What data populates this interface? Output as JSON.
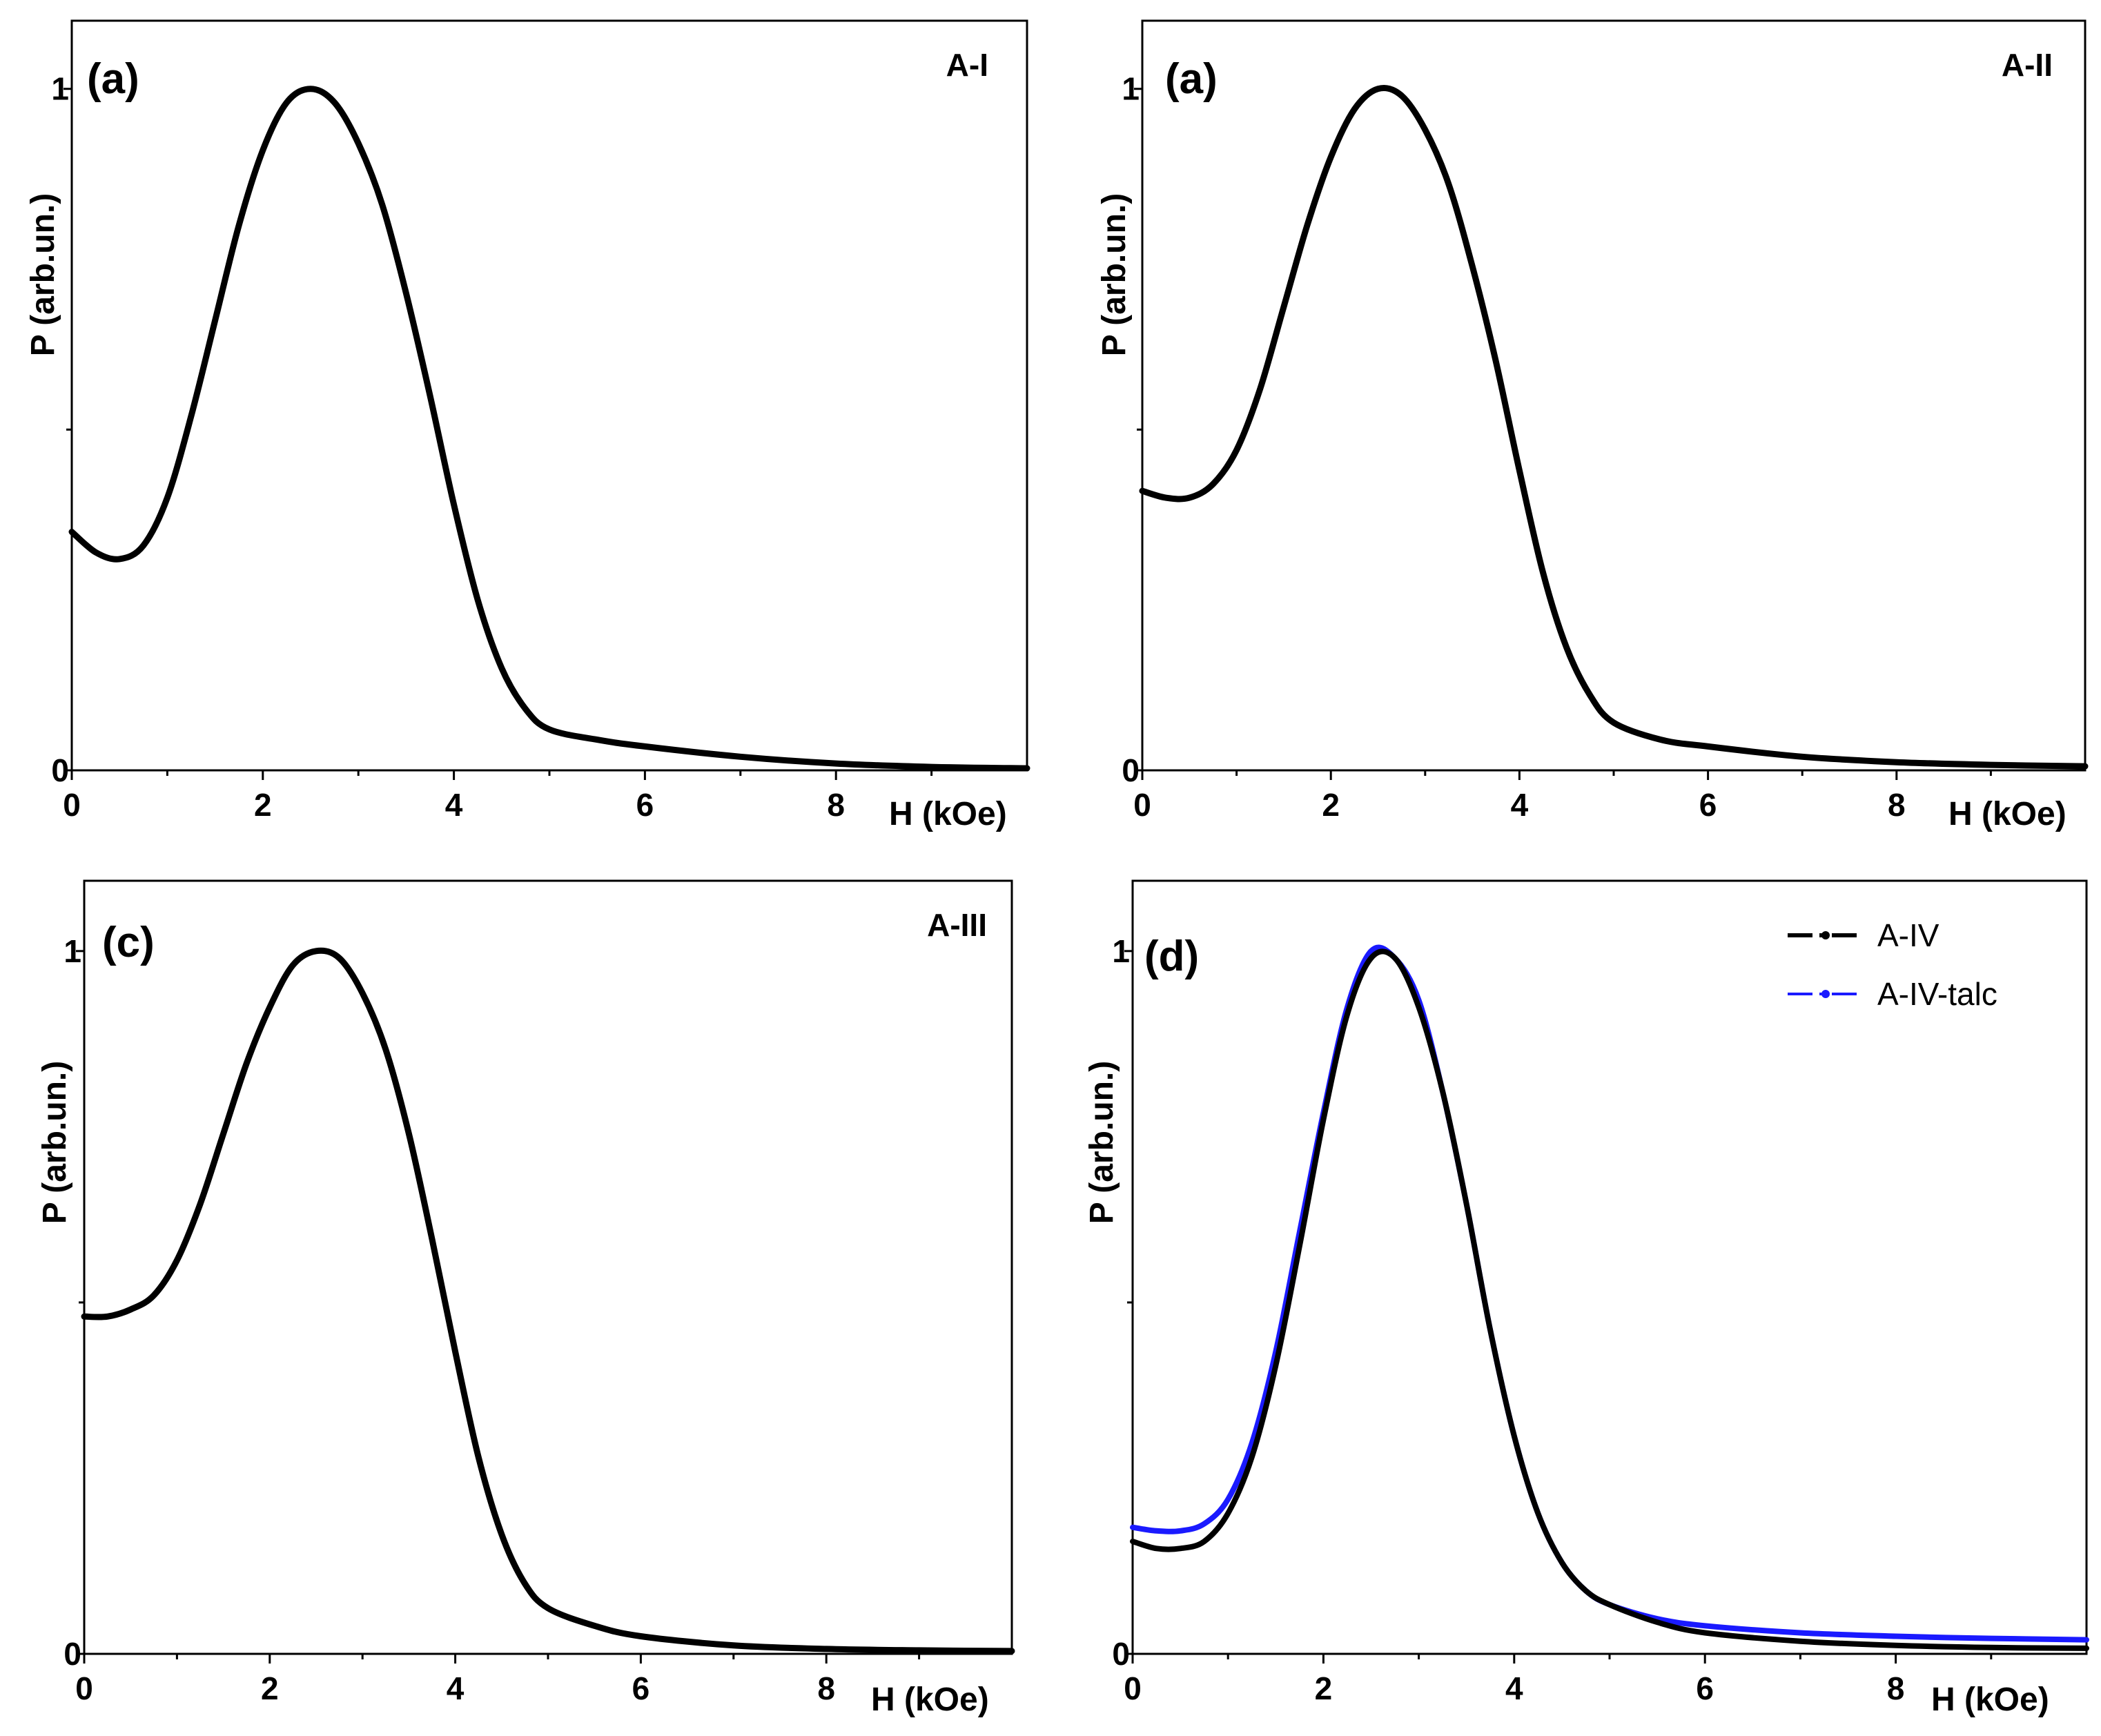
{
  "chart_data": [
    {
      "type": "line",
      "panel_label": "(a)",
      "sample_label": "A-I",
      "xlabel": "H (kOe)",
      "ylabel": "P (arb.un.)",
      "xlim": [
        0,
        10
      ],
      "ylim": [
        0,
        1.1
      ],
      "xticks": [
        0,
        2,
        4,
        6,
        8
      ],
      "yticks": [
        0,
        1
      ],
      "legend": false,
      "series": [
        {
          "name": "A-I",
          "color": "#000000",
          "x": [
            0,
            0.25,
            0.5,
            0.75,
            1.0,
            1.25,
            1.5,
            1.75,
            2.0,
            2.25,
            2.5,
            2.75,
            3.0,
            3.25,
            3.5,
            3.75,
            4.0,
            4.25,
            4.5,
            4.75,
            5.0,
            5.5,
            6.0,
            7.0,
            8.0,
            9.0,
            10.0
          ],
          "y": [
            0.35,
            0.32,
            0.31,
            0.33,
            0.4,
            0.52,
            0.66,
            0.8,
            0.91,
            0.98,
            1.0,
            0.98,
            0.92,
            0.83,
            0.7,
            0.55,
            0.39,
            0.25,
            0.15,
            0.09,
            0.06,
            0.045,
            0.035,
            0.02,
            0.01,
            0.005,
            0.003
          ]
        }
      ]
    },
    {
      "type": "line",
      "panel_label": "(a)",
      "sample_label": "A-II",
      "xlabel": "H (kOe)",
      "ylabel": "P (arb.un.)",
      "xlim": [
        0,
        10
      ],
      "ylim": [
        0,
        1.1
      ],
      "xticks": [
        0,
        2,
        4,
        6,
        8
      ],
      "yticks": [
        0,
        1
      ],
      "legend": false,
      "series": [
        {
          "name": "A-II",
          "color": "#000000",
          "x": [
            0,
            0.25,
            0.5,
            0.75,
            1.0,
            1.25,
            1.5,
            1.75,
            2.0,
            2.25,
            2.5,
            2.75,
            3.0,
            3.25,
            3.5,
            3.75,
            4.0,
            4.25,
            4.5,
            4.75,
            5.0,
            5.5,
            6.0,
            7.0,
            8.0,
            9.0,
            10.0
          ],
          "y": [
            0.41,
            0.4,
            0.4,
            0.42,
            0.47,
            0.56,
            0.68,
            0.8,
            0.9,
            0.97,
            1.0,
            0.99,
            0.94,
            0.86,
            0.74,
            0.6,
            0.44,
            0.29,
            0.18,
            0.11,
            0.07,
            0.045,
            0.035,
            0.02,
            0.012,
            0.008,
            0.006
          ]
        }
      ]
    },
    {
      "type": "line",
      "panel_label": "(c)",
      "sample_label": "A-III",
      "xlabel": "H (kOe)",
      "ylabel": "P (arb.un.)",
      "xlim": [
        0,
        10
      ],
      "ylim": [
        0,
        1.1
      ],
      "xticks": [
        0,
        2,
        4,
        6,
        8
      ],
      "yticks": [
        0,
        1
      ],
      "legend": false,
      "series": [
        {
          "name": "A-III",
          "color": "#000000",
          "x": [
            0,
            0.25,
            0.5,
            0.75,
            1.0,
            1.25,
            1.5,
            1.75,
            2.0,
            2.25,
            2.5,
            2.75,
            3.0,
            3.25,
            3.5,
            3.75,
            4.0,
            4.25,
            4.5,
            4.75,
            5.0,
            5.5,
            6.0,
            7.0,
            8.0,
            9.0,
            10.0
          ],
          "y": [
            0.48,
            0.48,
            0.49,
            0.51,
            0.56,
            0.64,
            0.74,
            0.84,
            0.92,
            0.98,
            1.0,
            0.99,
            0.94,
            0.86,
            0.74,
            0.59,
            0.43,
            0.28,
            0.17,
            0.1,
            0.065,
            0.04,
            0.025,
            0.012,
            0.007,
            0.005,
            0.004
          ]
        }
      ]
    },
    {
      "type": "line",
      "panel_label": "(d)",
      "sample_label": "",
      "xlabel": "H (kOe)",
      "ylabel": "P (arb.un.)",
      "xlim": [
        0,
        10
      ],
      "ylim": [
        0,
        1.1
      ],
      "xticks": [
        0,
        2,
        4,
        6,
        8
      ],
      "yticks": [
        0,
        1
      ],
      "legend": true,
      "legend_position": "top-right",
      "series": [
        {
          "name": "A-IV",
          "color": "#000000",
          "x": [
            0,
            0.25,
            0.5,
            0.75,
            1.0,
            1.25,
            1.5,
            1.75,
            2.0,
            2.25,
            2.5,
            2.75,
            3.0,
            3.25,
            3.5,
            3.75,
            4.0,
            4.25,
            4.5,
            4.75,
            5.0,
            5.5,
            6.0,
            7.0,
            8.0,
            9.0,
            10.0
          ],
          "y": [
            0.16,
            0.15,
            0.15,
            0.16,
            0.2,
            0.28,
            0.41,
            0.58,
            0.76,
            0.91,
            0.99,
            0.99,
            0.92,
            0.8,
            0.64,
            0.46,
            0.31,
            0.2,
            0.13,
            0.09,
            0.07,
            0.045,
            0.03,
            0.018,
            0.012,
            0.009,
            0.008
          ]
        },
        {
          "name": "A-IV-talc",
          "color": "#1a1aff",
          "x": [
            0,
            0.25,
            0.5,
            0.75,
            1.0,
            1.25,
            1.5,
            1.75,
            2.0,
            2.25,
            2.5,
            2.75,
            3.0,
            3.25,
            3.5,
            3.75,
            4.0,
            4.25,
            4.5,
            4.75,
            5.0,
            5.5,
            6.0,
            7.0,
            8.0,
            9.0,
            10.0
          ],
          "y": [
            0.18,
            0.175,
            0.175,
            0.185,
            0.22,
            0.3,
            0.43,
            0.6,
            0.77,
            0.92,
            1.0,
            0.99,
            0.93,
            0.8,
            0.64,
            0.46,
            0.31,
            0.2,
            0.13,
            0.09,
            0.07,
            0.05,
            0.04,
            0.03,
            0.025,
            0.022,
            0.02
          ]
        }
      ]
    }
  ]
}
